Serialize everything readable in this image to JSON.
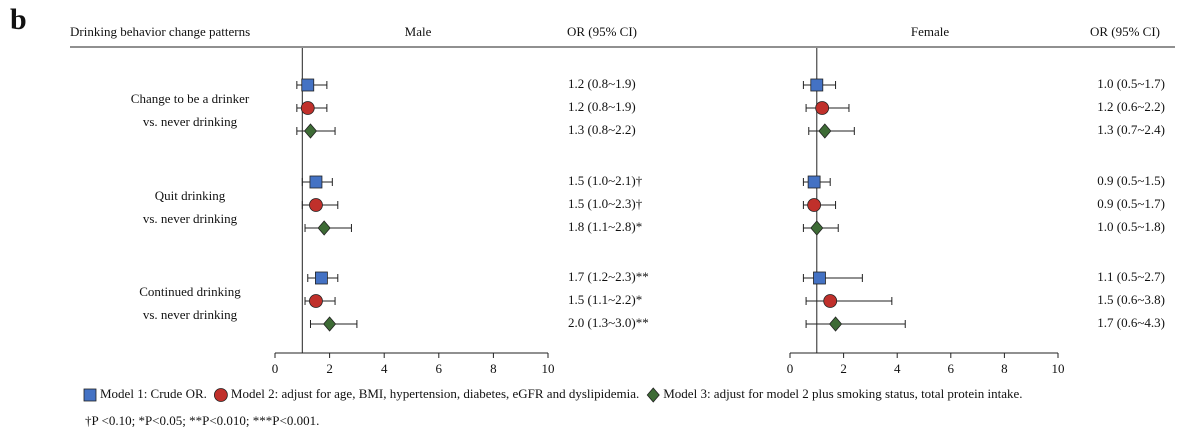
{
  "panel_label": "b",
  "row_header": "Drinking behavior change patterns",
  "categories": [
    [
      "Change to be a drinker",
      "vs. never drinking"
    ],
    [
      "Quit drinking",
      "vs. never drinking"
    ],
    [
      "Continued drinking",
      "vs. never drinking"
    ]
  ],
  "legend": [
    {
      "name": "Model 1: Crude OR.",
      "color": "#4472c4",
      "marker": "square"
    },
    {
      "name": "Model 2: adjust for age, BMI, hypertension, diabetes, eGFR and dyslipidemia.",
      "color": "#c0302b",
      "marker": "circle"
    },
    {
      "name": "Model 3: adjust for model 2 plus smoking status, total protein intake.",
      "color": "#3d6b35",
      "marker": "diamond"
    }
  ],
  "footnote": "†P <0.10; *P<0.05; **P<0.010; ***P<0.001.",
  "chart_data": [
    {
      "type": "forest",
      "title": "Male",
      "ci_header": "OR (95% CI)",
      "xlim": [
        0,
        10
      ],
      "xticks": [
        0,
        2,
        4,
        6,
        8,
        10
      ],
      "ref_line": 1,
      "series": [
        {
          "values": [
            1.2,
            1.5,
            1.7
          ],
          "lower": [
            0.8,
            1.0,
            1.2
          ],
          "upper": [
            1.9,
            2.1,
            2.3
          ],
          "value_labels": [
            "1.2 (0.8~1.9)",
            "1.5 (1.0~2.1)†",
            "1.7 (1.2~2.3)**"
          ]
        },
        {
          "values": [
            1.2,
            1.5,
            1.5
          ],
          "lower": [
            0.8,
            1.0,
            1.1
          ],
          "upper": [
            1.9,
            2.3,
            2.2
          ],
          "value_labels": [
            "1.2 (0.8~1.9)",
            "1.5 (1.0~2.3)†",
            "1.5 (1.1~2.2)*"
          ]
        },
        {
          "values": [
            1.3,
            1.8,
            2.0
          ],
          "lower": [
            0.8,
            1.1,
            1.3
          ],
          "upper": [
            2.2,
            2.8,
            3.0
          ],
          "value_labels": [
            "1.3 (0.8~2.2)",
            "1.8 (1.1~2.8)*",
            "2.0 (1.3~3.0)**"
          ]
        }
      ]
    },
    {
      "type": "forest",
      "title": "Female",
      "ci_header": "OR (95% CI)",
      "xlim": [
        0,
        10
      ],
      "xticks": [
        0,
        2,
        4,
        6,
        8,
        10
      ],
      "ref_line": 1,
      "series": [
        {
          "values": [
            1.0,
            0.9,
            1.1
          ],
          "lower": [
            0.5,
            0.5,
            0.5
          ],
          "upper": [
            1.7,
            1.5,
            2.7
          ],
          "value_labels": [
            "1.0 (0.5~1.7)",
            "0.9 (0.5~1.5)",
            "1.1 (0.5~2.7)"
          ]
        },
        {
          "values": [
            1.2,
            0.9,
            1.5
          ],
          "lower": [
            0.6,
            0.5,
            0.6
          ],
          "upper": [
            2.2,
            1.7,
            3.8
          ],
          "value_labels": [
            "1.2 (0.6~2.2)",
            "0.9 (0.5~1.7)",
            "1.5 (0.6~3.8)"
          ]
        },
        {
          "values": [
            1.3,
            1.0,
            1.7
          ],
          "lower": [
            0.7,
            0.5,
            0.6
          ],
          "upper": [
            2.4,
            1.8,
            4.3
          ],
          "value_labels": [
            "1.3 (0.7~2.4)",
            "1.0 (0.5~1.8)",
            "1.7 (0.6~4.3)"
          ]
        }
      ]
    }
  ]
}
